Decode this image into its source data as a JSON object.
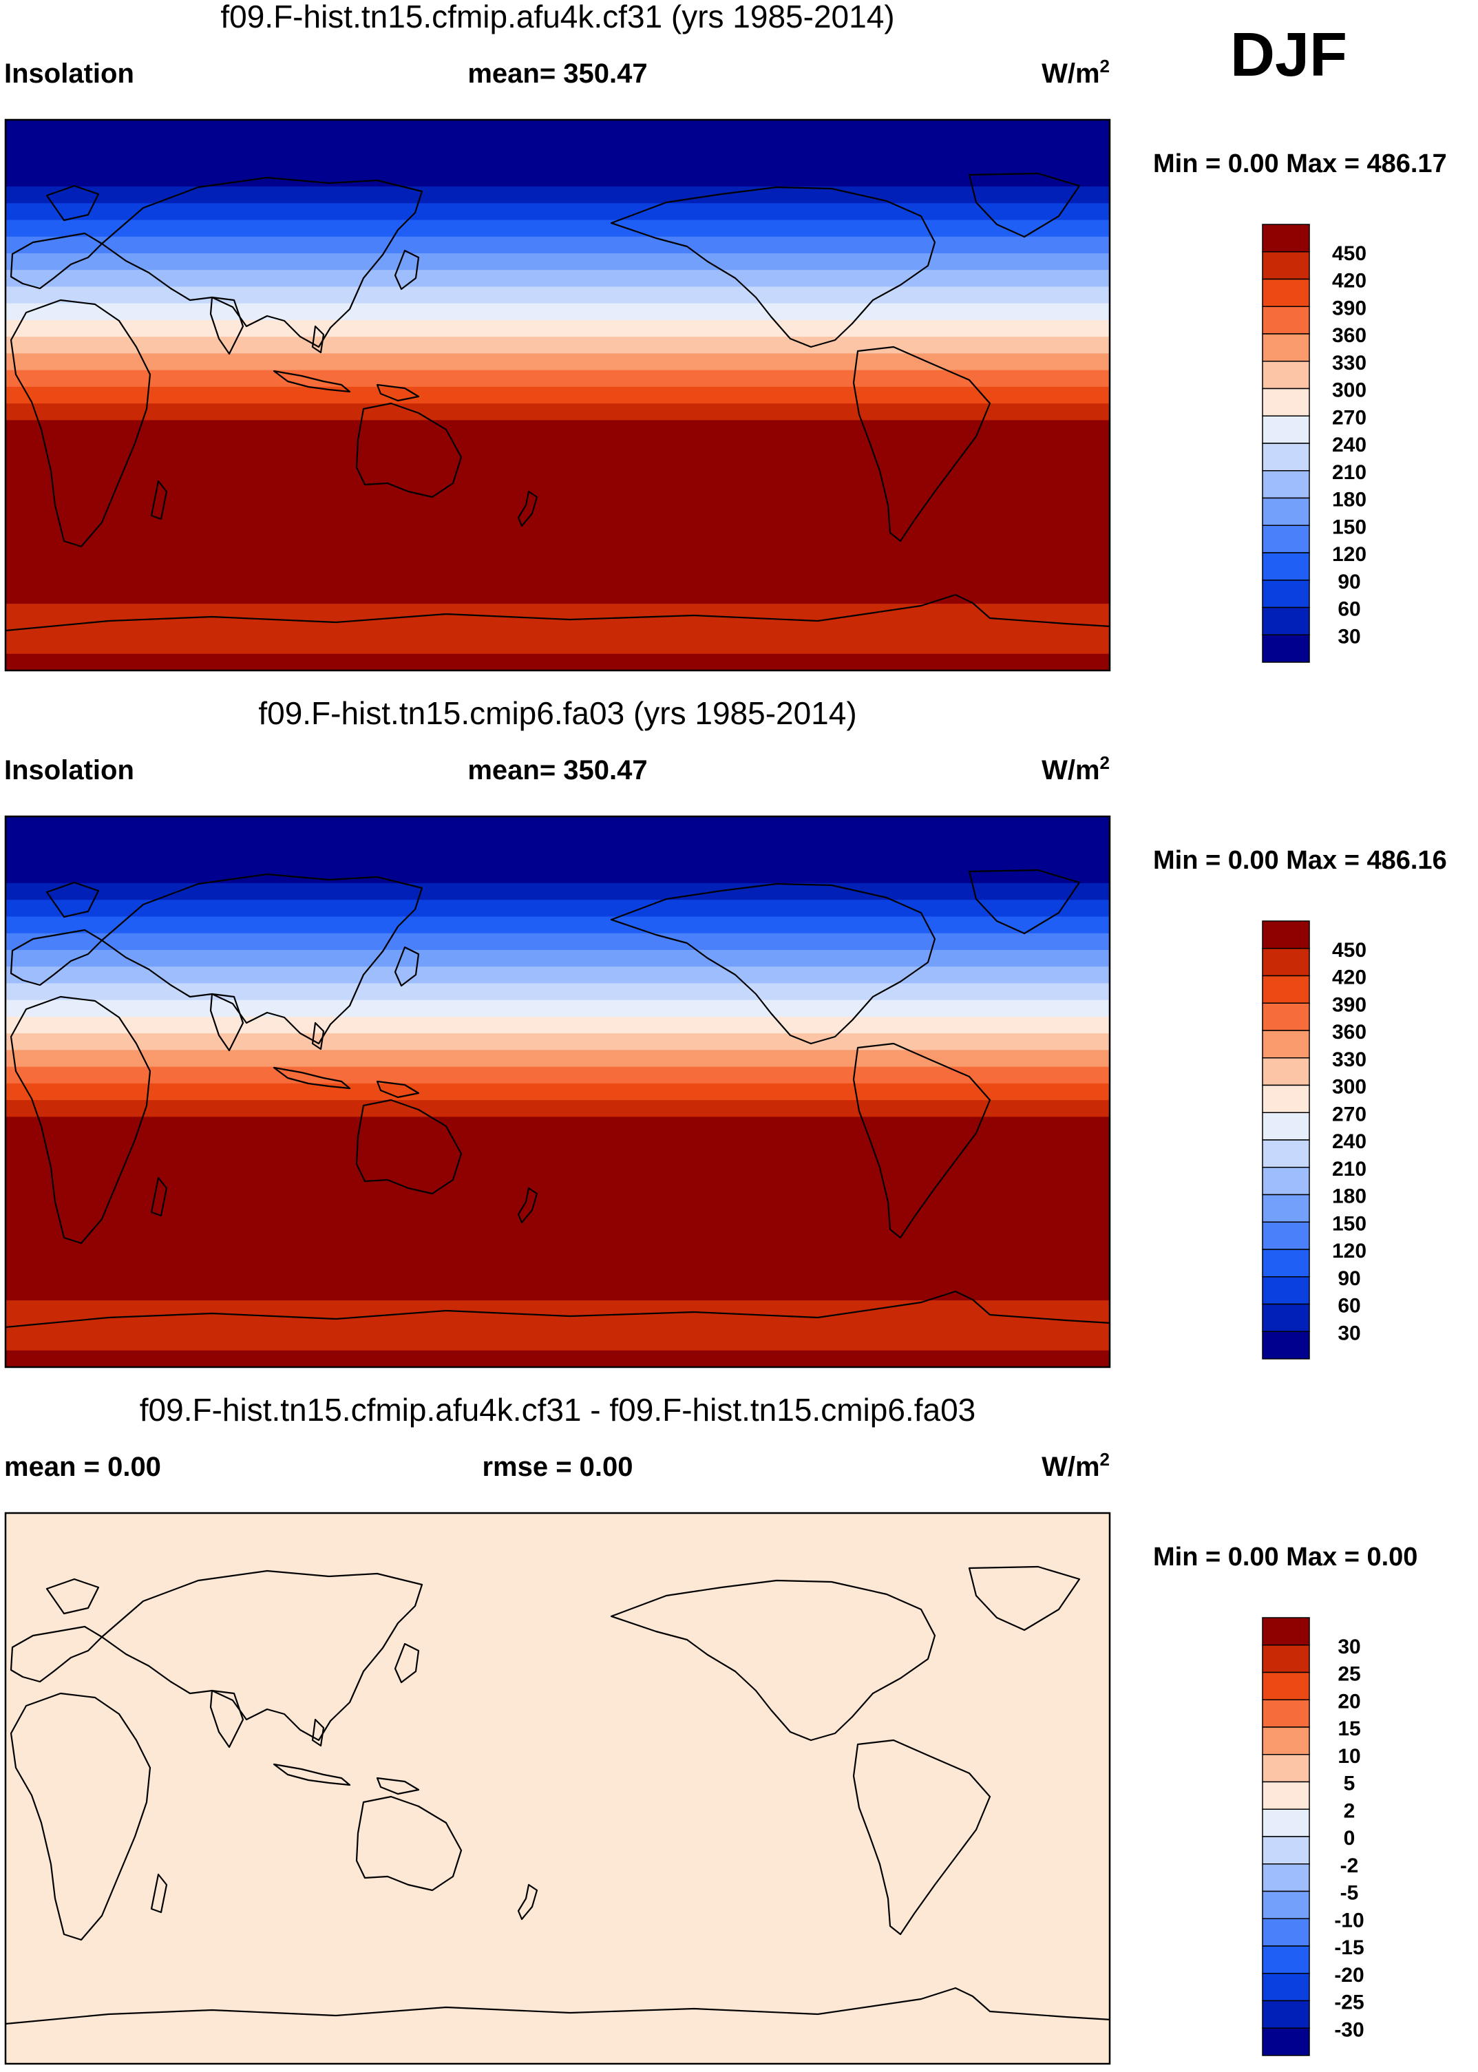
{
  "season": "DJF",
  "continent_outline": "simplified continent coastline outlines (Pacific-centered)",
  "panels": [
    {
      "title": "f09.F-hist.tn15.cfmip.afu4k.cf31 (yrs 1985-2014)",
      "left_label": "Insolation",
      "center_label": "mean= 350.47",
      "units_base": "W/m",
      "units_exp": "2",
      "minmax": "Min =   0.00 Max = 486.17",
      "field": "insolation",
      "legend_labels": [
        "450",
        "420",
        "390",
        "360",
        "330",
        "300",
        "270",
        "240",
        "210",
        "180",
        "150",
        "120",
        "90",
        "60",
        "30"
      ]
    },
    {
      "title": "f09.F-hist.tn15.cmip6.fa03 (yrs 1985-2014)",
      "left_label": "Insolation",
      "center_label": "mean= 350.47",
      "units_base": "W/m",
      "units_exp": "2",
      "minmax": "Min =   0.00 Max = 486.16",
      "field": "insolation",
      "legend_labels": [
        "450",
        "420",
        "390",
        "360",
        "330",
        "300",
        "270",
        "240",
        "210",
        "180",
        "150",
        "120",
        "90",
        "60",
        "30"
      ]
    },
    {
      "title": "f09.F-hist.tn15.cfmip.afu4k.cf31 - f09.F-hist.tn15.cmip6.fa03",
      "left_label": "mean =   0.00",
      "center_label": "rmse =   0.00",
      "units_base": "W/m",
      "units_exp": "2",
      "minmax": "Min =   0.00 Max =   0.00",
      "field": "difference",
      "legend_labels": [
        "30",
        "25",
        "20",
        "15",
        "10",
        "5",
        "2",
        "0",
        "-2",
        "-5",
        "-10",
        "-15",
        "-20",
        "-25",
        "-30"
      ]
    }
  ],
  "colors": {
    "scale": [
      "#00008f",
      "#0020b8",
      "#0a3fe0",
      "#1f5ff5",
      "#4a80fa",
      "#73a0fb",
      "#9dbdfc",
      "#c6d9fd",
      "#e6eefc",
      "#fde8da",
      "#fcc6a6",
      "#f99a6d",
      "#f66c3a",
      "#ec4a14",
      "#c92a05",
      "#8f0000"
    ],
    "difference_fill": "#fde8d6"
  }
}
